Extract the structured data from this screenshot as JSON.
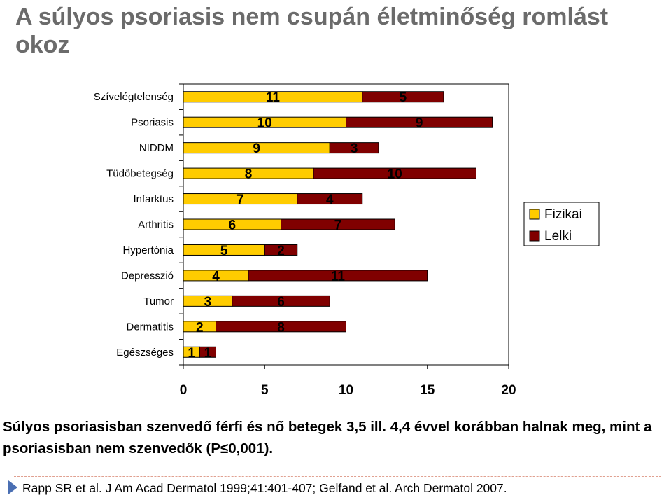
{
  "title": "A súlyos psoriasis nem csupán életminőség romlást okoz",
  "chart_data": {
    "type": "bar",
    "orientation": "horizontal",
    "stacked": true,
    "categories": [
      "Szívelégtelenség",
      "Psoriasis",
      "NIDDM",
      "Tüdőbetegség",
      "Infarktus",
      "Arthritis",
      "Hypertónia",
      "Depresszió",
      "Tumor",
      "Dermatitis",
      "Egészséges"
    ],
    "series": [
      {
        "name": "Fizikai",
        "color": "#FFCC00",
        "values": [
          11,
          10,
          9,
          8,
          7,
          6,
          5,
          4,
          3,
          2,
          1
        ]
      },
      {
        "name": "Lelki",
        "color": "#800000",
        "values": [
          5,
          9,
          3,
          10,
          4,
          7,
          2,
          11,
          6,
          8,
          1
        ]
      }
    ],
    "xlim": [
      0,
      20
    ],
    "xticks": [
      0,
      5,
      10,
      15,
      20
    ],
    "legend": "right"
  },
  "caption": "Súlyos psoriasisban szenvedő férfi és nő betegek 3,5 ill. 4,4 évvel korábban halnak meg, mint a psoriasisban nem szenvedők (P≤0,001).",
  "reference": "Rapp SR et al. J Am Acad Dermatol 1999;41:401-407; Gelfand et al. Arch Dermatol 2007."
}
